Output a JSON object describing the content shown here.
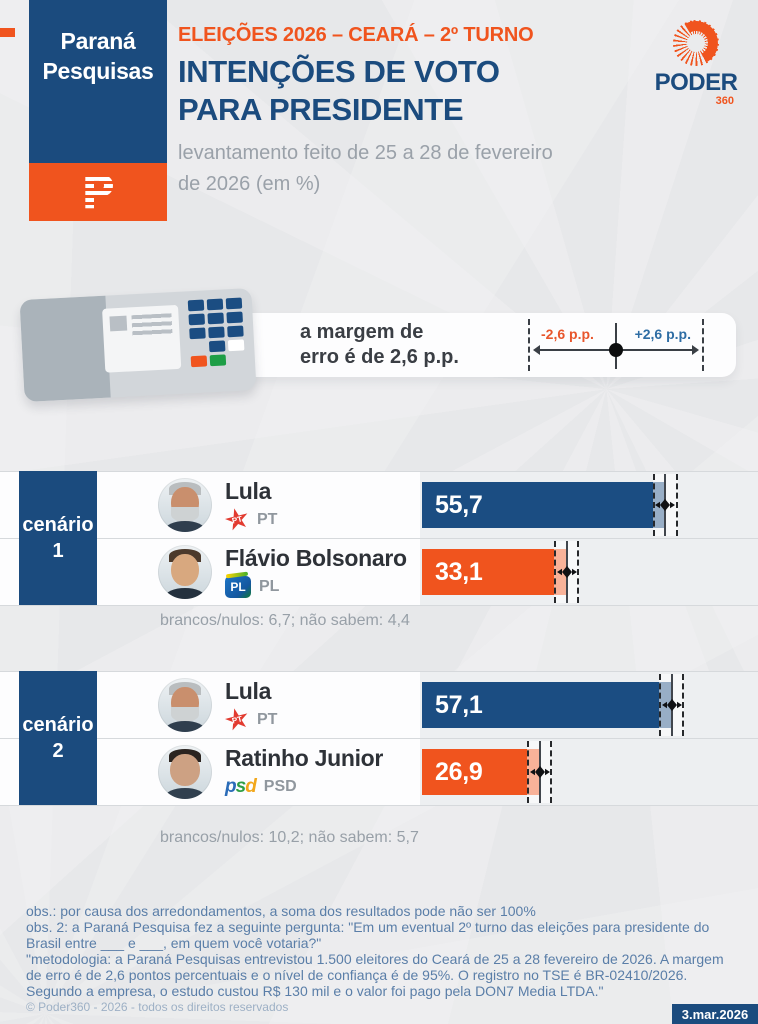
{
  "header": {
    "brand": {
      "line1": "Paraná",
      "line2": "Pesquisas",
      "logo_letter": "P"
    },
    "kicker": "ELEIÇÕES 2026 – CEARÁ – 2º TURNO",
    "title_line1": "INTENÇÕES DE VOTO",
    "title_line2": "PARA PRESIDENTE",
    "subtitle_line1": "levantamento feito de 25 a 28 de fevereiro",
    "subtitle_line2": "de 2026 (em %)",
    "poder_logo": {
      "word": "PODER",
      "number": "360"
    }
  },
  "margin_box": {
    "text_line1": "a margem de",
    "text_line2": "erro é de 2,6 p.p.",
    "minus_label": "-2,6 p.p.",
    "plus_label": "+2,6 p.p."
  },
  "chart_data": {
    "type": "bar",
    "orientation": "horizontal",
    "unit": "%",
    "title": "INTENÇÕES DE VOTO PARA PRESIDENTE",
    "subtitle": "ELEIÇÕES 2026 – CEARÁ – 2º TURNO — levantamento feito de 25 a 28 de fevereiro de 2026 (em %)",
    "margin_of_error_pp": 2.6,
    "axis_range": [
      0,
      100
    ],
    "scenarios": [
      {
        "label_line1": "cenário",
        "label_line2": "1",
        "bars": [
          {
            "candidate": "Lula",
            "party": "PT",
            "value": 55.7,
            "display": "55,7",
            "color": "#1b4d82"
          },
          {
            "candidate": "Flávio Bolsonaro",
            "party": "PL",
            "value": 33.1,
            "display": "33,1",
            "color": "#f0541e"
          }
        ],
        "footnote": "brancos/nulos: 6,7; não sabem: 4,4"
      },
      {
        "label_line1": "cenário",
        "label_line2": "2",
        "bars": [
          {
            "candidate": "Lula",
            "party": "PT",
            "value": 57.1,
            "display": "57,1",
            "color": "#1b4d82"
          },
          {
            "candidate": "Ratinho Junior",
            "party": "PSD",
            "value": 26.9,
            "display": "26,9",
            "color": "#f0541e"
          }
        ],
        "footnote": "brancos/nulos: 10,2; não sabem: 5,7"
      }
    ],
    "party_logos": {
      "pt_text": "PT",
      "pl_text": "PL",
      "psd_letters": [
        "p",
        "s",
        "d"
      ]
    }
  },
  "footer": {
    "obs1": "obs.: por causa dos arredondamentos, a soma dos resultados pode não ser 100%",
    "obs2": "obs. 2: a Paraná Pesquisa fez a seguinte pergunta: \"Em um eventual 2º turno das eleições para presidente do Brasil entre ___ e ___, em quem você votaria?\"",
    "methodology": "\"metodologia: a Paraná Pesquisas entrevistou 1.500 eleitores do Ceará de 25 a 28 fevereiro de 2026. A margem de erro é de 2,6 pontos percentuais e o nível de confiança é de 95%. O registro no TSE é BR-02410/2026. Segundo a empresa, o estudo custou R$ 130 mil e o valor foi pago pela DON7 Media LTDA.\"",
    "copyright": "© Poder360 - 2026 - todos os direitos reservados",
    "date": "3.mar.2026"
  },
  "colors": {
    "navy": "#1b4b7e",
    "orange": "#f0541e",
    "page_bg": "#e7e8ea",
    "bar_navy": "#1b4d82",
    "bar_orange": "#f0541e",
    "footer_text": "#5a7ea8"
  },
  "icons": {
    "poder360-sunburst-icon": "orange ray circle",
    "voting-machine-icon": "urna eletrônica illustration",
    "moe-marker-icon": "black diamond with side arrows",
    "pt-star-icon": "red star badge",
    "pl-badge-icon": "blue rounded PL badge",
    "psd-logo-icon": "psd colored wordmark"
  }
}
